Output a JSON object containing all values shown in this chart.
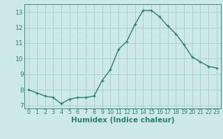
{
  "x": [
    0,
    1,
    2,
    3,
    4,
    5,
    6,
    7,
    8,
    9,
    10,
    11,
    12,
    13,
    14,
    15,
    16,
    17,
    18,
    19,
    20,
    21,
    22,
    23
  ],
  "y": [
    8.0,
    7.8,
    7.6,
    7.5,
    7.1,
    7.4,
    7.5,
    7.5,
    7.6,
    8.6,
    9.3,
    10.6,
    11.1,
    12.2,
    13.1,
    13.1,
    12.7,
    12.1,
    11.6,
    10.9,
    10.1,
    9.8,
    9.5,
    9.4
  ],
  "line_color": "#2d7d6e",
  "bg_color": "#cce8e8",
  "grid_color": "#b0d0d0",
  "xlabel": "Humidex (Indice chaleur)",
  "xlabel_fontsize": 7.5,
  "tick_color": "#2d7d6e",
  "ylim": [
    6.8,
    13.5
  ],
  "xlim": [
    -0.5,
    23.5
  ],
  "yticks": [
    7,
    8,
    9,
    10,
    11,
    12,
    13
  ],
  "xticks": [
    0,
    1,
    2,
    3,
    4,
    5,
    6,
    7,
    8,
    9,
    10,
    11,
    12,
    13,
    14,
    15,
    16,
    17,
    18,
    19,
    20,
    21,
    22,
    23
  ]
}
